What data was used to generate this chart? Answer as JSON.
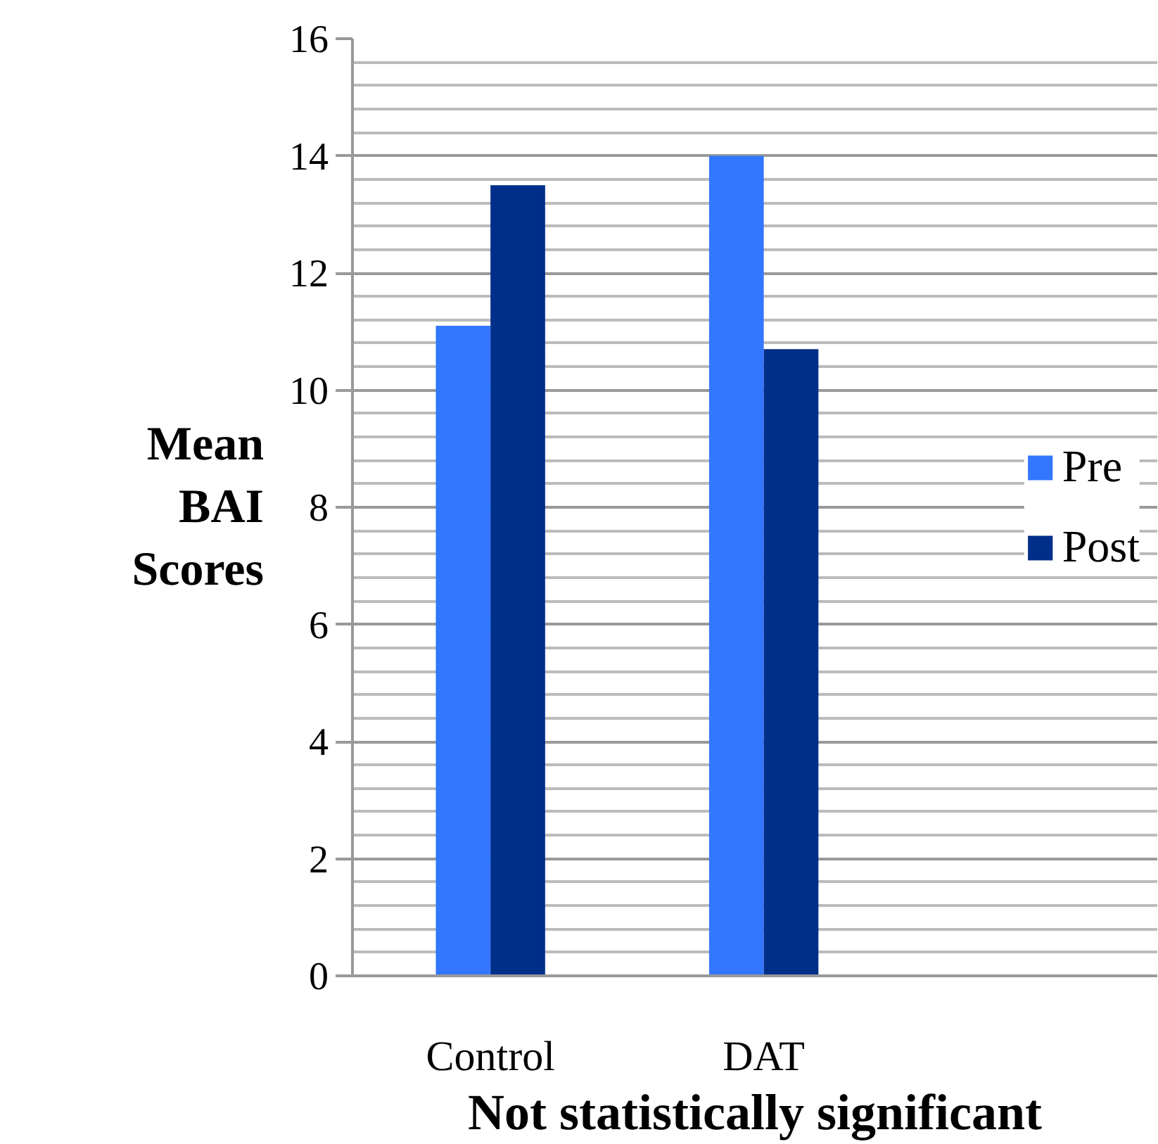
{
  "chart_data": {
    "type": "bar",
    "categories": [
      "Control",
      "DAT"
    ],
    "series": [
      {
        "name": "Pre",
        "color": "#3377ff",
        "values": [
          11.1,
          14.0
        ]
      },
      {
        "name": "Post",
        "color": "#002f8a",
        "values": [
          13.5,
          10.7
        ]
      }
    ],
    "ylabel": "Mean BAI Scores",
    "xlabel": "Not statistically significant",
    "ylim": [
      0,
      16
    ],
    "yticks": [
      0,
      2,
      4,
      6,
      8,
      10,
      12,
      14,
      16
    ],
    "grid": "y",
    "legend": "right"
  }
}
